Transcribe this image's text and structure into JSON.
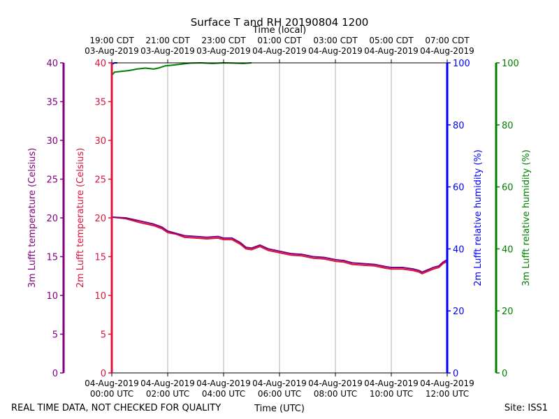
{
  "chart_data": {
    "type": "line",
    "title": "Surface T and RH 20190804 1200",
    "top_axis_title": "Time (local)",
    "xlabel": "Time (UTC)",
    "footer_left": "REAL TIME DATA, NOT CHECKED FOR QUALITY",
    "footer_right": "Site: ISS1",
    "x_range_hours": [
      0,
      12
    ],
    "x_ticks_bottom": [
      {
        "h": 0,
        "line1": "04-Aug-2019",
        "line2": "00:00 UTC"
      },
      {
        "h": 2,
        "line1": "04-Aug-2019",
        "line2": "02:00 UTC"
      },
      {
        "h": 4,
        "line1": "04-Aug-2019",
        "line2": "04:00 UTC"
      },
      {
        "h": 6,
        "line1": "04-Aug-2019",
        "line2": "06:00 UTC"
      },
      {
        "h": 8,
        "line1": "04-Aug-2019",
        "line2": "08:00 UTC"
      },
      {
        "h": 10,
        "line1": "04-Aug-2019",
        "line2": "10:00 UTC"
      },
      {
        "h": 12,
        "line1": "04-Aug-2019",
        "line2": "12:00 UTC"
      }
    ],
    "x_ticks_top": [
      {
        "h": 0,
        "line1": "19:00 CDT",
        "line2": "03-Aug-2019"
      },
      {
        "h": 2,
        "line1": "21:00 CDT",
        "line2": "03-Aug-2019"
      },
      {
        "h": 4,
        "line1": "23:00 CDT",
        "line2": "03-Aug-2019"
      },
      {
        "h": 6,
        "line1": "01:00 CDT",
        "line2": "04-Aug-2019"
      },
      {
        "h": 8,
        "line1": "03:00 CDT",
        "line2": "04-Aug-2019"
      },
      {
        "h": 10,
        "line1": "05:00 CDT",
        "line2": "04-Aug-2019"
      },
      {
        "h": 12,
        "line1": "07:00 CDT",
        "line2": "04-Aug-2019"
      }
    ],
    "axes": [
      {
        "id": "t3m",
        "label": "3m Lufft temperature (Celsius)",
        "color": "#800080",
        "range": [
          0,
          40
        ],
        "ticks": [
          0,
          5,
          10,
          15,
          20,
          25,
          30,
          35,
          40
        ]
      },
      {
        "id": "t2m",
        "label": "2m Lufft temperature (Celsius)",
        "color": "#dc143c",
        "range": [
          0,
          40
        ],
        "ticks": [
          0,
          5,
          10,
          15,
          20,
          25,
          30,
          35,
          40
        ]
      },
      {
        "id": "rh2m",
        "label": "2m Lufft relative humidity (%)",
        "color": "#0000ff",
        "range": [
          0,
          100
        ],
        "ticks": [
          0,
          20,
          40,
          60,
          80,
          100
        ]
      },
      {
        "id": "rh3m",
        "label": "3m Lufft relative humidity (%)",
        "color": "#008000",
        "range": [
          0,
          100
        ],
        "ticks": [
          0,
          20,
          40,
          60,
          80,
          100
        ]
      }
    ],
    "series": [
      {
        "name": "2m Lufft temperature",
        "axis": "t2m",
        "color": "#dc143c",
        "x": [
          0,
          0.5,
          1,
          1.5,
          1.8,
          2,
          2.3,
          2.6,
          3,
          3.4,
          3.8,
          4,
          4.3,
          4.6,
          4.8,
          5,
          5.3,
          5.6,
          6,
          6.4,
          6.8,
          7.2,
          7.6,
          8,
          8.3,
          8.6,
          9,
          9.4,
          9.8,
          10,
          10.4,
          10.8,
          11,
          11.1,
          11.3,
          11.5,
          11.7,
          11.85,
          12
        ],
        "values": [
          20.1,
          19.9,
          19.4,
          19.0,
          18.6,
          18.1,
          17.9,
          17.5,
          17.4,
          17.3,
          17.4,
          17.2,
          17.2,
          16.6,
          16.0,
          15.9,
          16.3,
          15.8,
          15.5,
          15.2,
          15.1,
          14.8,
          14.7,
          14.4,
          14.3,
          14.0,
          13.9,
          13.8,
          13.5,
          13.4,
          13.4,
          13.2,
          13.0,
          12.8,
          13.1,
          13.4,
          13.6,
          14.1,
          14.4
        ]
      },
      {
        "name": "3m Lufft temperature",
        "axis": "t3m",
        "color": "#800080",
        "x": [
          0,
          0.5,
          1,
          1.5,
          1.8,
          2,
          2.3,
          2.6,
          3,
          3.4,
          3.8,
          4,
          4.3,
          4.6,
          4.8,
          5,
          5.3,
          5.6,
          6,
          6.4,
          6.8,
          7.2,
          7.6,
          8,
          8.3,
          8.6,
          9,
          9.4,
          9.8,
          10,
          10.4,
          10.8,
          11,
          11.1,
          11.3,
          11.5,
          11.7,
          11.85,
          12
        ],
        "values": [
          20.1,
          20.0,
          19.6,
          19.2,
          18.8,
          18.3,
          18.0,
          17.7,
          17.6,
          17.5,
          17.6,
          17.4,
          17.4,
          16.8,
          16.2,
          16.1,
          16.5,
          16.0,
          15.7,
          15.4,
          15.3,
          15.0,
          14.9,
          14.6,
          14.5,
          14.2,
          14.1,
          14.0,
          13.7,
          13.6,
          13.6,
          13.4,
          13.2,
          13.0,
          13.3,
          13.6,
          13.8,
          14.3,
          14.6
        ]
      },
      {
        "name": "2m Lufft relative humidity",
        "axis": "rh2m",
        "color": "#0000ff",
        "x": [
          0,
          0.1,
          0.2
        ],
        "values": [
          99.5,
          100,
          100
        ]
      },
      {
        "name": "3m Lufft relative humidity",
        "axis": "rh3m",
        "color": "#008000",
        "x": [
          0,
          0.05,
          0.1,
          0.3,
          0.6,
          0.9,
          1.2,
          1.5,
          1.7,
          1.9,
          2.1,
          2.4,
          2.8,
          3.2,
          3.6,
          4.0,
          4.4,
          4.7,
          5.0
        ],
        "values": [
          96.0,
          96.5,
          97.0,
          97.2,
          97.5,
          98.0,
          98.3,
          98.0,
          98.4,
          99.0,
          99.2,
          99.5,
          99.9,
          100,
          99.8,
          100,
          99.9,
          99.8,
          100
        ]
      }
    ]
  }
}
